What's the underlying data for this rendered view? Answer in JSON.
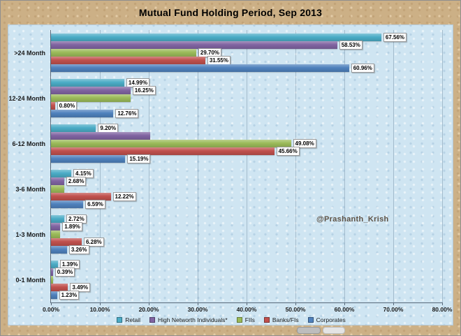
{
  "chart_data": {
    "type": "bar",
    "orientation": "horizontal",
    "title": "Mutual Fund Holding Period, Sep 2013",
    "watermark": "@Prashanth_Krish",
    "categories": [
      ">24 Month",
      "12-24 Month",
      "6-12 Month",
      "3-6 Month",
      "1-3 Month",
      "0-1 Month"
    ],
    "x_ticks": [
      "0.00%",
      "10.00%",
      "20.00%",
      "30.00%",
      "40.00%",
      "50.00%",
      "60.00%",
      "70.00%",
      "80.00%"
    ],
    "xlim": [
      0,
      80
    ],
    "grid": true,
    "legend_position": "bottom",
    "series": [
      {
        "name": "Retail",
        "color": "#4bacc6",
        "values": [
          67.56,
          14.99,
          9.2,
          4.15,
          2.72,
          1.39
        ],
        "labels": [
          "67.56%",
          "14.99%",
          "9.20%",
          "4.15%",
          "2.72%",
          "1.39%"
        ]
      },
      {
        "name": "High Networth Individuals*",
        "color": "#8064a2",
        "values": [
          58.53,
          16.25,
          20.26,
          2.68,
          1.89,
          0.39
        ],
        "labels": [
          "58.53%",
          "16.25%",
          "",
          "2.68%",
          "1.89%",
          "0.39%"
        ]
      },
      {
        "name": "FIIs",
        "color": "#9bbb59",
        "values": [
          29.7,
          16.25,
          49.08,
          2.68,
          1.89,
          0.39
        ],
        "labels": [
          "29.70%",
          "",
          "49.08%",
          "",
          "",
          ""
        ]
      },
      {
        "name": "Banks/FIs",
        "color": "#c0504d",
        "values": [
          31.55,
          0.8,
          45.66,
          12.22,
          6.28,
          3.49
        ],
        "labels": [
          "31.55%",
          "0.80%",
          "45.66%",
          "12.22%",
          "6.28%",
          "3.49%"
        ]
      },
      {
        "name": "Corporates",
        "color": "#4f81bd",
        "values": [
          60.96,
          12.76,
          15.19,
          6.59,
          3.26,
          1.23
        ],
        "labels": [
          "60.96%",
          "12.76%",
          "15.19%",
          "6.59%",
          "3.26%",
          "1.23%"
        ]
      }
    ]
  }
}
